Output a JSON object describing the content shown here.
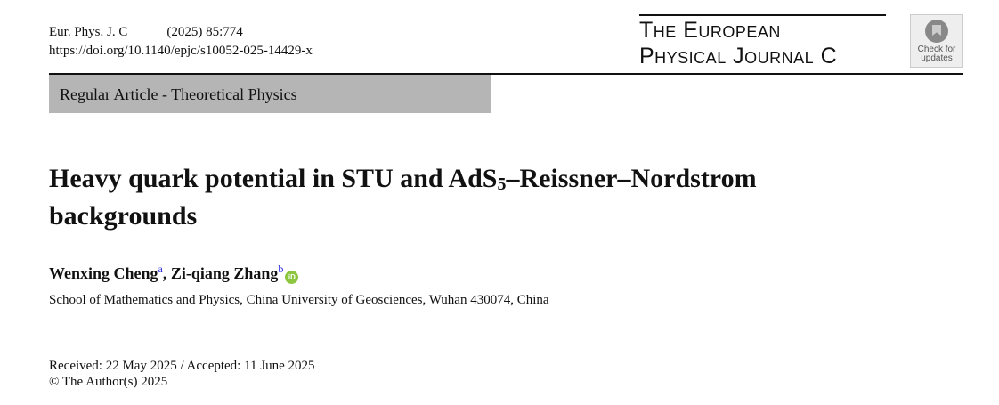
{
  "header": {
    "journal_abbrev": "Eur. Phys. J. C",
    "citation": "(2025) 85:774",
    "doi": "https://doi.org/10.1140/epjc/s10052-025-14429-x",
    "journal_title_line1": "The European",
    "journal_title_line2": "Physical Journal C",
    "badge_line1": "Check for",
    "badge_line2": "updates"
  },
  "category": "Regular Article - Theoretical Physics",
  "title": {
    "part1": "Heavy quark potential in STU and AdS",
    "subscript": "5",
    "part2": "–Reissner–Nordstrom backgrounds"
  },
  "authors": [
    {
      "name": "Wenxing Cheng",
      "affil": "a"
    },
    {
      "name": "Zi-qiang Zhang",
      "affil": "b"
    }
  ],
  "orcid_label": "iD",
  "affiliation": "School of Mathematics and Physics, China University of Geosciences, Wuhan 430074, China",
  "received": "Received: 22 May 2025 / Accepted: 11 June 2025",
  "copyright": "© The Author(s)  2025",
  "colors": {
    "category_bg": "#b5b5b5",
    "orcid": "#8cc63f",
    "affil_link": "#2a2ae0"
  }
}
